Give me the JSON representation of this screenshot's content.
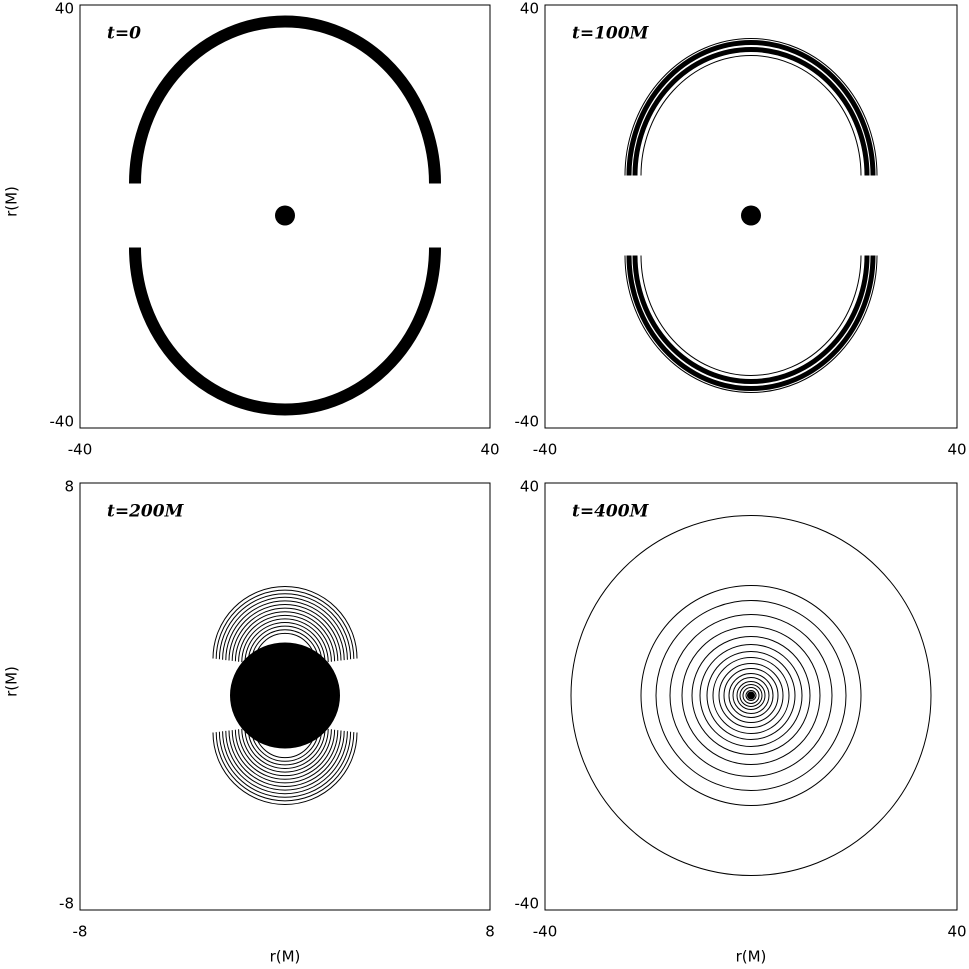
{
  "chart_data": [
    {
      "type": "contour",
      "title": "t=0",
      "ylabel": "r(M)",
      "xlim": [
        -40,
        40
      ],
      "ylim": [
        -40,
        40
      ],
      "xticks": [
        -40,
        40
      ],
      "yticks": [
        -40,
        40
      ]
    },
    {
      "type": "contour",
      "title": "t=100M",
      "xlim": [
        -40,
        40
      ],
      "ylim": [
        -40,
        40
      ],
      "xticks": [
        -40,
        40
      ],
      "yticks": [
        -40,
        40
      ]
    },
    {
      "type": "contour",
      "title": "t=200M",
      "ylabel": "r(M)",
      "xlabel": "r(M)",
      "xlim": [
        -8,
        8
      ],
      "ylim": [
        -8,
        8
      ],
      "xticks": [
        -8,
        8
      ],
      "yticks": [
        -8,
        8
      ]
    },
    {
      "type": "contour",
      "title": "t=400M",
      "xlabel": "r(M)",
      "xlim": [
        -40,
        40
      ],
      "ylim": [
        -40,
        40
      ],
      "xticks": [
        -40,
        40
      ],
      "yticks": [
        -40,
        40
      ]
    }
  ]
}
